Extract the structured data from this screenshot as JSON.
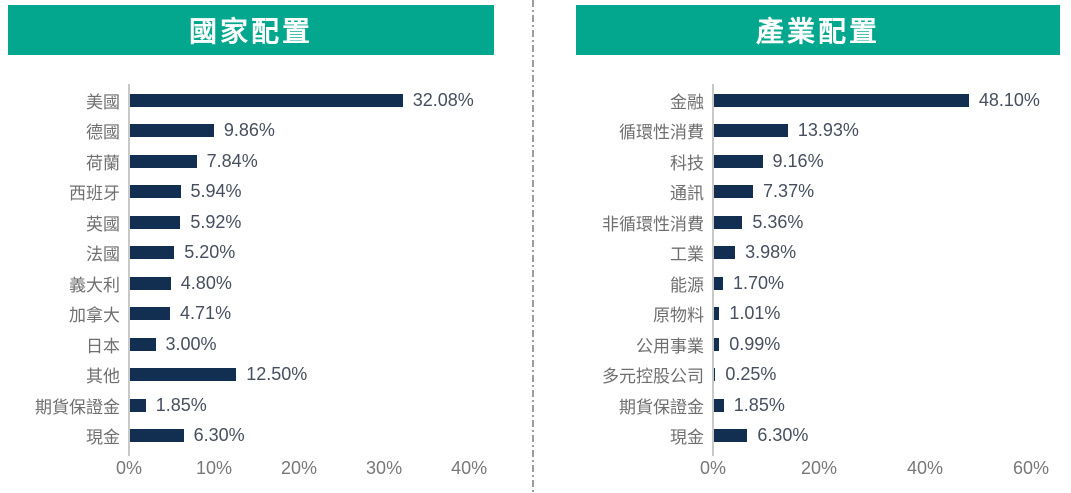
{
  "colors": {
    "header_bg": "#02A78D",
    "header_text": "#FFFFFF",
    "bar": "#122F52",
    "value_label": "#474F5E",
    "category_label": "#6F6F6F",
    "tick_label": "#787878",
    "axis_line": "#C8C8C8",
    "divider": "#9C9C9C"
  },
  "chart_data": [
    {
      "type": "bar",
      "orientation": "horizontal",
      "title": "國家配置",
      "categories": [
        "美國",
        "德國",
        "荷蘭",
        "西班牙",
        "英國",
        "法國",
        "義大利",
        "加拿大",
        "日本",
        "其他",
        "期貨保證金",
        "現金"
      ],
      "values": [
        32.08,
        9.86,
        7.84,
        5.94,
        5.92,
        5.2,
        4.8,
        4.71,
        3.0,
        12.5,
        1.85,
        6.3
      ],
      "value_labels": [
        "32.08%",
        "9.86%",
        "7.84%",
        "5.94%",
        "5.92%",
        "5.20%",
        "4.80%",
        "4.71%",
        "3.00%",
        "12.50%",
        "1.85%",
        "6.30%"
      ],
      "x_ticks": [
        {
          "label": "0%",
          "value": 0
        },
        {
          "label": "10%",
          "value": 10
        },
        {
          "label": "20%",
          "value": 20
        },
        {
          "label": "30%",
          "value": 30
        },
        {
          "label": "40%",
          "value": 40
        }
      ],
      "xlabel": "",
      "ylabel": "",
      "xlim": [
        0,
        43.4
      ],
      "grid": false,
      "legend": "none"
    },
    {
      "type": "bar",
      "orientation": "horizontal",
      "title": "產業配置",
      "categories": [
        "金融",
        "循環性消費",
        "科技",
        "通訊",
        "非循環性消費",
        "工業",
        "能源",
        "原物料",
        "公用事業",
        "多元控股公司",
        "期貨保證金",
        "現金"
      ],
      "values": [
        48.1,
        13.93,
        9.16,
        7.37,
        5.36,
        3.98,
        1.7,
        1.01,
        0.99,
        0.25,
        1.85,
        6.3
      ],
      "value_labels": [
        "48.10%",
        "13.93%",
        "9.16%",
        "7.37%",
        "5.36%",
        "3.98%",
        "1.70%",
        "1.01%",
        "0.99%",
        "0.25%",
        "1.85%",
        "6.30%"
      ],
      "x_ticks": [
        {
          "label": "0%",
          "value": 0
        },
        {
          "label": "20%",
          "value": 20
        },
        {
          "label": "40%",
          "value": 40
        },
        {
          "label": "60%",
          "value": 60
        }
      ],
      "xlabel": "",
      "ylabel": "",
      "xlim": [
        0,
        66.8
      ],
      "grid": false,
      "legend": "none"
    }
  ]
}
